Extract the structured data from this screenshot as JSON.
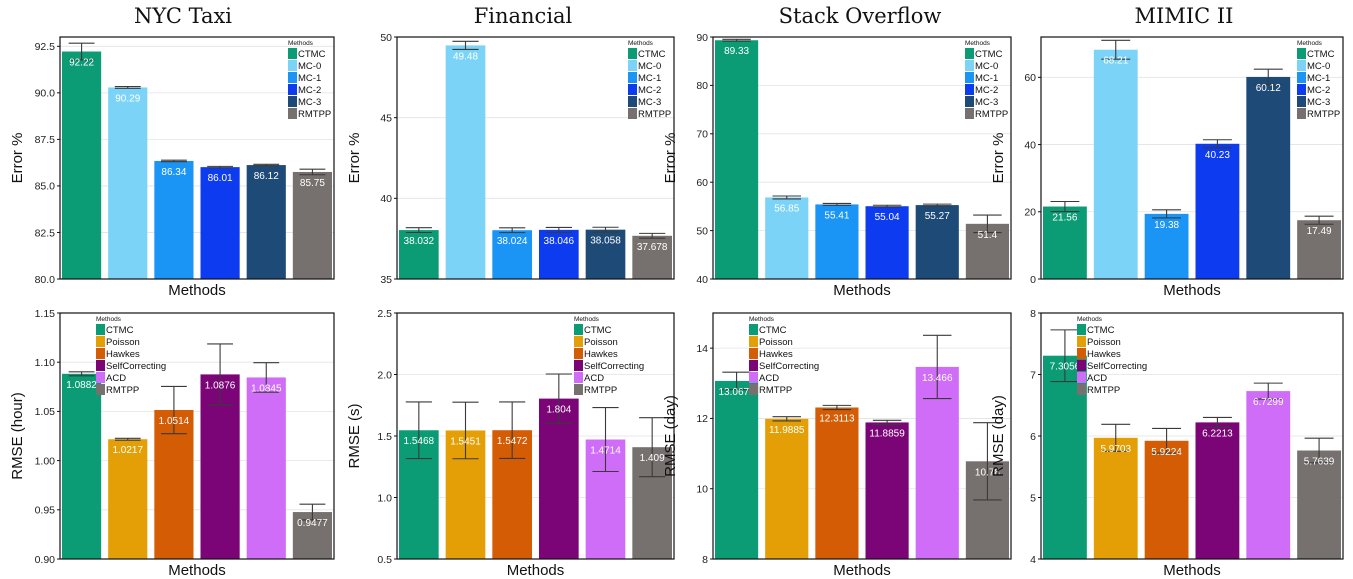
{
  "column_titles": [
    "NYC Taxi",
    "Financial",
    "Stack Overflow",
    "MIMIC II"
  ],
  "chart_data": [
    {
      "type": "bar",
      "dataset": "NYC Taxi",
      "title": "NYC Taxi",
      "xlabel": "Methods",
      "ylabel": "Error %",
      "ylim": [
        80,
        93
      ],
      "yticks": [
        "80.0",
        "82.5",
        "85.0",
        "87.5",
        "90.0",
        "92.5"
      ],
      "legend_title": "Methods",
      "legend_placement": "top-right",
      "categories": [
        "CTMC",
        "MC-0",
        "MC-1",
        "MC-2",
        "MC-3",
        "RMTPP"
      ],
      "values": [
        92.22,
        90.29,
        86.34,
        86.01,
        86.12,
        85.75
      ],
      "errors": [
        0.45,
        0.05,
        0.04,
        0.04,
        0.04,
        0.15
      ],
      "labels": [
        "92.22",
        "90.29",
        "86.34",
        "86.01",
        "86.12",
        "85.75"
      ],
      "colors": [
        "#0b9c76",
        "#7bd4f8",
        "#1a95f6",
        "#0d3cf0",
        "#1e4a78",
        "#76706e"
      ]
    },
    {
      "type": "bar",
      "dataset": "Financial",
      "xlabel": "",
      "ylabel": "Error %",
      "ylim": [
        35,
        50
      ],
      "yticks": [
        "35",
        "40",
        "45",
        "50"
      ],
      "legend_title": "Methods",
      "legend_placement": "top-right",
      "categories": [
        "CTMC",
        "MC-0",
        "MC-1",
        "MC-2",
        "MC-3",
        "RMTPP"
      ],
      "values": [
        38.032,
        49.48,
        38.024,
        38.046,
        38.058,
        37.678
      ],
      "errors": [
        0.15,
        0.25,
        0.15,
        0.15,
        0.15,
        0.15
      ],
      "labels": [
        "38.032",
        "49.48",
        "38.024",
        "38.046",
        "38.058",
        "37.678"
      ],
      "colors": [
        "#0b9c76",
        "#7bd4f8",
        "#1a95f6",
        "#0d3cf0",
        "#1e4a78",
        "#76706e"
      ]
    },
    {
      "type": "bar",
      "dataset": "Stack Overflow",
      "xlabel": "Methods",
      "ylabel": "Error %",
      "ylim": [
        40,
        90
      ],
      "yticks": [
        "40",
        "50",
        "60",
        "70",
        "80",
        "90"
      ],
      "legend_title": "Methods",
      "legend_placement": "top-right",
      "categories": [
        "CTMC",
        "MC-0",
        "MC-1",
        "MC-2",
        "MC-3",
        "RMTPP"
      ],
      "values": [
        89.33,
        56.85,
        55.41,
        55.04,
        55.27,
        51.4
      ],
      "errors": [
        0.2,
        0.3,
        0.2,
        0.2,
        0.2,
        1.8
      ],
      "labels": [
        "89.33",
        "56.85",
        "55.41",
        "55.04",
        "55.27",
        "51.4"
      ],
      "colors": [
        "#0b9c76",
        "#7bd4f8",
        "#1a95f6",
        "#0d3cf0",
        "#1e4a78",
        "#76706e"
      ]
    },
    {
      "type": "bar",
      "dataset": "MIMIC II",
      "xlabel": "Methods",
      "ylabel": "Error %",
      "ylim": [
        0,
        72
      ],
      "yticks": [
        "0",
        "20",
        "40",
        "60"
      ],
      "legend_title": "Methods",
      "legend_placement": "top-right",
      "categories": [
        "CTMC",
        "MC-0",
        "MC-1",
        "MC-2",
        "MC-3",
        "RMTPP"
      ],
      "values": [
        21.56,
        68.21,
        19.38,
        40.23,
        60.12,
        17.49
      ],
      "errors": [
        1.5,
        2.8,
        1.2,
        1.2,
        2.3,
        1.2
      ],
      "labels": [
        "21.56",
        "68.21",
        "19.38",
        "40.23",
        "60.12",
        "17.49"
      ],
      "colors": [
        "#0b9c76",
        "#7bd4f8",
        "#1a95f6",
        "#0d3cf0",
        "#1e4a78",
        "#76706e"
      ]
    },
    {
      "type": "bar",
      "dataset": "NYC Taxi",
      "xlabel": "Methods",
      "ylabel": "RMSE (hour)",
      "ylim": [
        0.9,
        1.15
      ],
      "yticks": [
        "0.90",
        "0.95",
        "1.00",
        "1.05",
        "1.10",
        "1.15"
      ],
      "legend_title": "Methods",
      "legend_placement": "top-left",
      "categories": [
        "CTMC",
        "Poisson",
        "Hawkes",
        "SelfCorrecting",
        "ACD",
        "RMTPP"
      ],
      "values": [
        1.0882,
        1.0217,
        1.0514,
        1.0876,
        1.0845,
        0.9477
      ],
      "errors": [
        0.002,
        0.001,
        0.024,
        0.031,
        0.015,
        0.008
      ],
      "labels": [
        "1.0882",
        "1.0217",
        "1.0514",
        "1.0876",
        "1.0845",
        "0.9477"
      ],
      "colors": [
        "#0b9c76",
        "#e39f05",
        "#d35c05",
        "#7b0577",
        "#cf6cf8",
        "#76706e"
      ]
    },
    {
      "type": "bar",
      "dataset": "Financial",
      "xlabel": "Methods",
      "ylabel": "RMSE (s)",
      "ylim": [
        0.5,
        2.5
      ],
      "yticks": [
        "0.5",
        "1.0",
        "1.5",
        "2.0",
        "2.5"
      ],
      "legend_title": "Methods",
      "legend_placement": "top-right",
      "categories": [
        "CTMC",
        "Poisson",
        "Hawkes",
        "SelfCorrecting",
        "ACD",
        "RMTPP"
      ],
      "values": [
        1.5468,
        1.5451,
        1.5472,
        1.804,
        1.4714,
        1.409
      ],
      "errors": [
        0.23,
        0.23,
        0.23,
        0.2,
        0.26,
        0.24
      ],
      "labels": [
        "1.5468",
        "1.5451",
        "1.5472",
        "1.804",
        "1.4714",
        "1.409"
      ],
      "colors": [
        "#0b9c76",
        "#e39f05",
        "#d35c05",
        "#7b0577",
        "#cf6cf8",
        "#76706e"
      ]
    },
    {
      "type": "bar",
      "dataset": "Stack Overflow",
      "xlabel": "Methods",
      "ylabel": "RMSE (day)",
      "ylim": [
        8,
        15
      ],
      "yticks": [
        "8",
        "10",
        "12",
        "14"
      ],
      "legend_title": "Methods",
      "legend_placement": "top-left",
      "categories": [
        "CTMC",
        "Poisson",
        "Hawkes",
        "SelfCorrecting",
        "ACD",
        "RMTPP"
      ],
      "values": [
        13.0671,
        11.9885,
        12.3113,
        11.8859,
        13.466,
        10.78
      ],
      "errors": [
        0.25,
        0.06,
        0.06,
        0.06,
        0.9,
        1.1
      ],
      "labels": [
        "13.0671",
        "11.9885",
        "12.3113",
        "11.8859",
        "13.466",
        "10.78"
      ],
      "colors": [
        "#0b9c76",
        "#e39f05",
        "#d35c05",
        "#7b0577",
        "#cf6cf8",
        "#76706e"
      ]
    },
    {
      "type": "bar",
      "dataset": "MIMIC II",
      "xlabel": "Methods",
      "ylabel": "RMSE (day)",
      "ylim": [
        4,
        8
      ],
      "yticks": [
        "4",
        "5",
        "6",
        "7",
        "8"
      ],
      "legend_title": "Methods",
      "legend_placement": "top-left",
      "categories": [
        "CTMC",
        "Poisson",
        "Hawkes",
        "SelfCorrecting",
        "ACD",
        "RMTPP"
      ],
      "values": [
        7.3056,
        5.9703,
        5.9224,
        6.2213,
        6.7299,
        5.7639
      ],
      "errors": [
        0.42,
        0.22,
        0.2,
        0.08,
        0.13,
        0.2
      ],
      "labels": [
        "7.3056",
        "5.9703",
        "5.9224",
        "6.2213",
        "6.7299",
        "5.7639"
      ],
      "colors": [
        "#0b9c76",
        "#e39f05",
        "#d35c05",
        "#7b0577",
        "#cf6cf8",
        "#76706e"
      ]
    }
  ]
}
